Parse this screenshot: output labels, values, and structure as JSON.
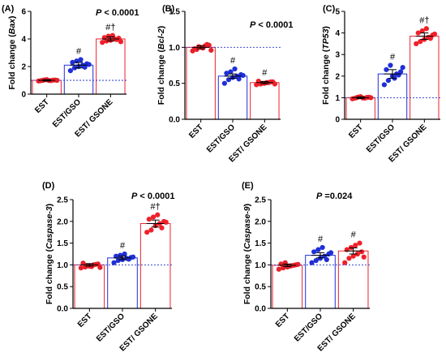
{
  "chart_data": [
    {
      "type": "bar",
      "panel": "(A)",
      "ylabel": "Fold change (Bax)",
      "ylabel_plain": "Fold change (",
      "ylabel_gene": "Bax",
      "ylabel_close": ")",
      "ylim": [
        0,
        6
      ],
      "yticks": [
        "0",
        "2",
        "4",
        "6"
      ],
      "ytick_values": [
        0,
        2,
        4,
        6
      ],
      "categories": [
        "EST",
        "EST/GSO",
        "EST/ GSONE"
      ],
      "values": [
        1.0,
        2.1,
        4.0
      ],
      "errors": [
        0.05,
        0.2,
        0.15
      ],
      "markers": [
        "",
        "#",
        "#†"
      ],
      "points": [
        [
          0.95,
          1.0,
          1.05,
          0.98,
          1.02,
          0.97,
          1.03,
          0.99,
          1.01,
          1.0
        ],
        [
          1.7,
          1.9,
          2.0,
          2.1,
          2.2,
          2.3,
          2.4,
          2.5,
          1.95,
          2.15
        ],
        [
          3.75,
          3.85,
          3.9,
          4.0,
          4.05,
          4.1,
          4.2,
          4.25,
          3.95,
          3.8
        ]
      ],
      "dashed_ref": 1.0,
      "pvalue": "P < 0.0001",
      "pvalue_italic": "P",
      "pvalue_rest": " < 0.0001"
    },
    {
      "type": "bar",
      "panel": "(B)",
      "ylabel": "Fold change (Bcl-2)",
      "ylabel_plain": "Fold change (",
      "ylabel_gene": "Bcl-2",
      "ylabel_close": ")",
      "ylim": [
        0,
        1.5
      ],
      "yticks": [
        "0.0",
        "0.5",
        "1.0",
        "1.5"
      ],
      "ytick_values": [
        0,
        0.5,
        1.0,
        1.5
      ],
      "categories": [
        "EST",
        "EST/GSO",
        "EST/ GSONE"
      ],
      "values": [
        1.0,
        0.6,
        0.51
      ],
      "errors": [
        0.02,
        0.03,
        0.015
      ],
      "markers": [
        "",
        "#",
        "#"
      ],
      "points": [
        [
          0.95,
          0.97,
          1.0,
          1.02,
          1.03,
          0.98,
          1.01,
          0.99,
          1.04,
          0.96
        ],
        [
          0.5,
          0.55,
          0.58,
          0.6,
          0.62,
          0.64,
          0.66,
          0.7,
          0.56,
          0.61
        ],
        [
          0.48,
          0.49,
          0.5,
          0.51,
          0.52,
          0.53,
          0.5,
          0.51,
          0.52,
          0.49
        ]
      ],
      "dashed_ref": 1.0,
      "pvalue": "P < 0.0001",
      "pvalue_italic": "P",
      "pvalue_rest": " < 0.0001"
    },
    {
      "type": "bar",
      "panel": "(C)",
      "ylabel": "Fold change (TP53)",
      "ylabel_plain": "Fold change (",
      "ylabel_gene": "TP53",
      "ylabel_close": ")",
      "ylim": [
        0,
        5
      ],
      "yticks": [
        "0",
        "1",
        "2",
        "3",
        "4",
        "5"
      ],
      "ytick_values": [
        0,
        1,
        2,
        3,
        4,
        5
      ],
      "categories": [
        "EST",
        "EST/GSO",
        "EST/ GSONE"
      ],
      "values": [
        1.0,
        2.1,
        3.85
      ],
      "errors": [
        0.04,
        0.2,
        0.15
      ],
      "markers": [
        "",
        "#",
        "#†"
      ],
      "points": [
        [
          0.95,
          1.0,
          1.05,
          0.98,
          1.02,
          0.97,
          1.03,
          0.99,
          1.01,
          1.0
        ],
        [
          1.6,
          1.8,
          2.0,
          2.1,
          2.2,
          2.3,
          2.5,
          1.9,
          2.05,
          2.4
        ],
        [
          3.5,
          3.6,
          3.7,
          3.8,
          3.9,
          4.0,
          4.1,
          4.2,
          3.75,
          3.95
        ]
      ],
      "dashed_ref": 1.0,
      "pvalue": "",
      "pvalue_italic": "",
      "pvalue_rest": ""
    },
    {
      "type": "bar",
      "panel": "(D)",
      "ylabel": "Fold change (Caspase-3)",
      "ylabel_plain": "Fold change (",
      "ylabel_gene": "Caspase-3",
      "ylabel_close": ")",
      "ylim": [
        0,
        2.5
      ],
      "yticks": [
        "0.0",
        "0.5",
        "1.0",
        "1.5",
        "2.0",
        "2.5"
      ],
      "ytick_values": [
        0,
        0.5,
        1.0,
        1.5,
        2.0,
        2.5
      ],
      "categories": [
        "EST",
        "EST/GSO",
        "EST/ GSONE"
      ],
      "values": [
        1.0,
        1.16,
        1.95
      ],
      "errors": [
        0.03,
        0.04,
        0.08
      ],
      "markers": [
        "",
        "#",
        "#†"
      ],
      "points": [
        [
          0.93,
          0.95,
          0.97,
          1.0,
          1.02,
          1.04,
          0.98,
          0.96,
          1.01,
          0.94
        ],
        [
          1.05,
          1.1,
          1.12,
          1.15,
          1.17,
          1.2,
          1.22,
          1.25,
          1.13,
          1.18
        ],
        [
          1.75,
          1.8,
          1.9,
          1.95,
          2.0,
          2.05,
          2.1,
          2.15,
          1.85,
          1.98
        ]
      ],
      "dashed_ref": 1.0,
      "pvalue": "P < 0.0001",
      "pvalue_italic": "P",
      "pvalue_rest": " < 0.0001"
    },
    {
      "type": "bar",
      "panel": "(E)",
      "ylabel": "Fold change (Caspase-9)",
      "ylabel_plain": "Fold change (",
      "ylabel_gene": "Caspase-9",
      "ylabel_close": ")",
      "ylim": [
        0,
        2.5
      ],
      "yticks": [
        "0.0",
        "0.5",
        "1.0",
        "1.5",
        "2.0",
        "2.5"
      ],
      "ytick_values": [
        0,
        0.5,
        1.0,
        1.5,
        2.0,
        2.5
      ],
      "categories": [
        "EST",
        "EST/GSO",
        "EST/ GSONE"
      ],
      "values": [
        0.99,
        1.22,
        1.32
      ],
      "errors": [
        0.03,
        0.06,
        0.07
      ],
      "markers": [
        "",
        "#",
        "#"
      ],
      "points": [
        [
          0.9,
          0.93,
          0.95,
          0.98,
          1.0,
          1.02,
          1.05,
          0.97,
          0.99,
          1.01
        ],
        [
          1.05,
          1.1,
          1.15,
          1.2,
          1.25,
          1.3,
          1.35,
          1.4,
          1.12,
          1.28
        ],
        [
          1.05,
          1.15,
          1.2,
          1.25,
          1.3,
          1.35,
          1.4,
          1.45,
          1.5,
          1.18
        ]
      ],
      "dashed_ref": 1.0,
      "pvalue": "P =0.024",
      "pvalue_italic": "P",
      "pvalue_rest": " =0.024"
    }
  ],
  "colors": {
    "est": "#e8202a",
    "gso": "#1f2fd8",
    "gsone": "#f0202a",
    "ref_line": "#2233cc",
    "axis": "#000000"
  }
}
